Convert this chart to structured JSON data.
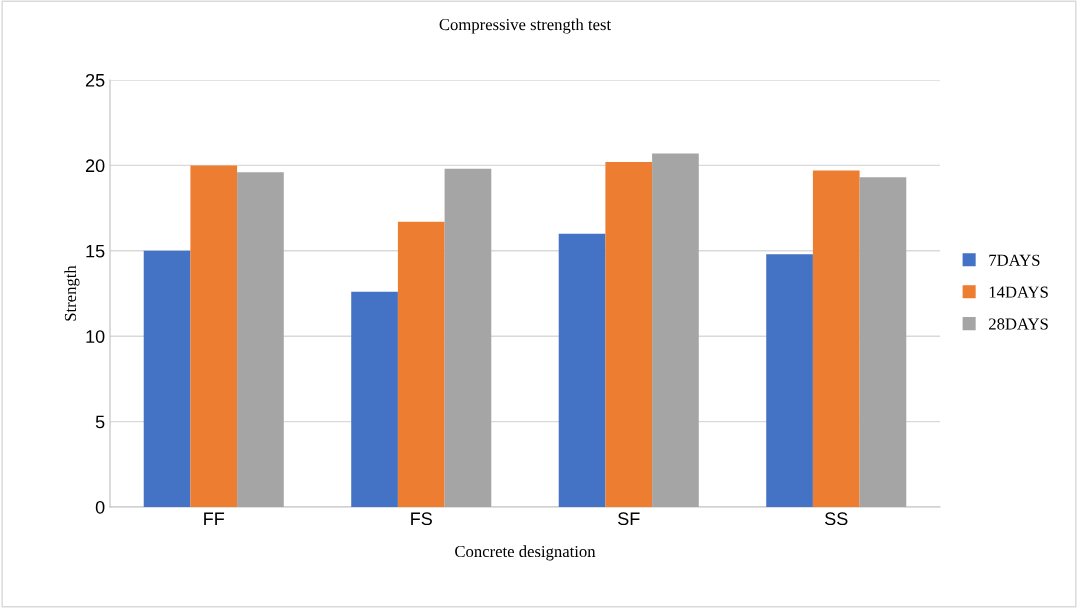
{
  "chart_data": {
    "type": "bar",
    "title": "Compressive strength test",
    "xlabel": "Concrete designation",
    "ylabel": "Strength",
    "categories": [
      "FF",
      "FS",
      "SF",
      "SS"
    ],
    "series": [
      {
        "name": "7DAYS",
        "color": "#4472c4",
        "values": [
          15.0,
          12.6,
          16.0,
          14.8
        ]
      },
      {
        "name": "14DAYS",
        "color": "#ed7d31",
        "values": [
          20.0,
          16.7,
          20.2,
          19.7
        ]
      },
      {
        "name": "28DAYS",
        "color": "#a5a5a5",
        "values": [
          19.6,
          19.8,
          20.7,
          19.3
        ]
      }
    ],
    "ylim": [
      0,
      25
    ],
    "yticks": [
      0,
      5,
      10,
      15,
      20,
      25
    ],
    "grid": "y",
    "legend": "right"
  }
}
